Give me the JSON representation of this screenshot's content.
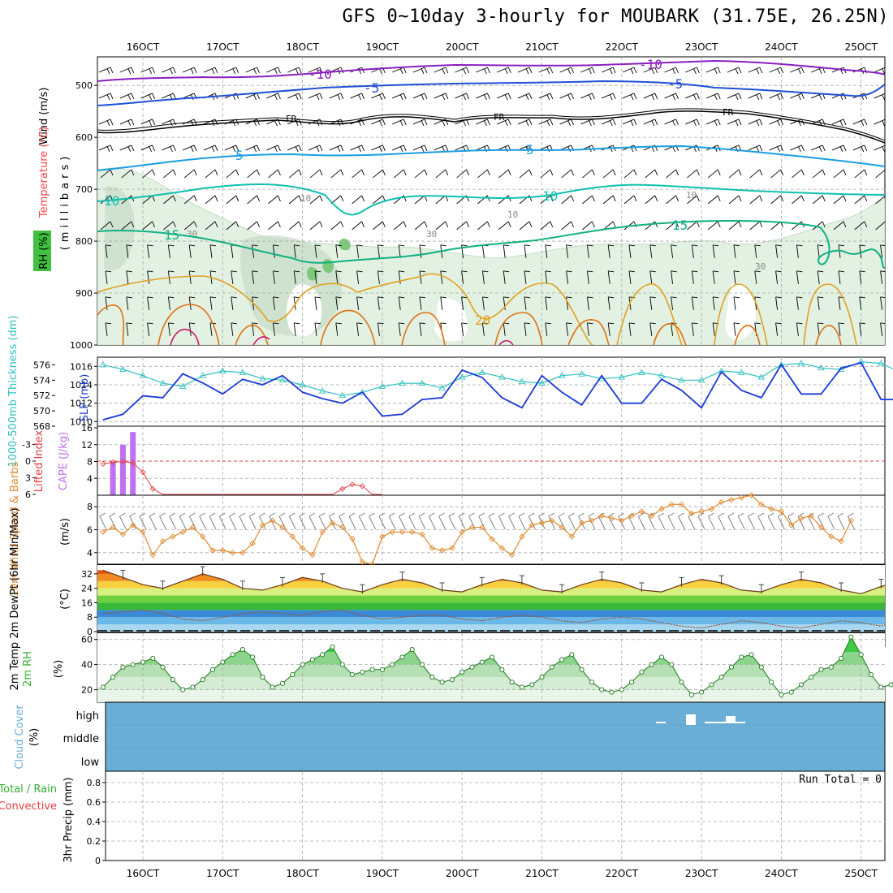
{
  "title": "GFS 0~10day 3-hourly for MOUBARK (31.75E, 26.25N)",
  "date_labels": [
    "16OCT",
    "17OCT",
    "18OCT",
    "19OCT",
    "20OCT",
    "21OCT",
    "22OCT",
    "23OCT",
    "24OCT",
    "25OCT"
  ],
  "colors": {
    "temp_minus10": "#8a1fc0",
    "temp_minus5": "#2050d8",
    "freezing": "#000000",
    "temp_5": "#1a9ee0",
    "temp_10": "#10c0b0",
    "temp_15": "#10b080",
    "temp_20": "#e0a020",
    "temp_25": "#e07010",
    "rh_fill": "#dcefdc",
    "cape_bar": "#c070f0",
    "lifted": "#e04040",
    "slp": "#1a3ad8",
    "thickness": "#30c0c0",
    "wind": "#e08a30",
    "rh2m": "#30b030",
    "cloud": "#6aaed6",
    "precip": "#000000"
  },
  "panels": {
    "upper_air": {
      "label_wind": "Wind (m/s)",
      "label_temperature": "Temperature (°C)",
      "label_rh": "RH (%)",
      "label_units": "(millibars)",
      "pressure_ticks": [
        "500",
        "600",
        "700",
        "800",
        "900",
        "1000"
      ],
      "contour_labels": {
        "m10": "-10",
        "m5": "-5",
        "fr": "FR",
        "p5": "5",
        "p10": "10",
        "p15": "15",
        "p20": "20",
        "rh10": "10",
        "rh30": "30"
      }
    },
    "slp_thickness": {
      "label_thickness": "1000-500mb Thickness (dm)",
      "label_slp": "SLP (mb)",
      "thickness_ticks": [
        "576",
        "574",
        "572",
        "570",
        "568"
      ],
      "slp_ticks": [
        "1016",
        "1014",
        "1012",
        "1010"
      ]
    },
    "cape_li": {
      "label_li": "Lifted Index",
      "label_cape": "CAPE (J/kg)",
      "li_ticks": [
        "-3",
        "0",
        "3",
        "6"
      ],
      "cape_ticks": [
        "16",
        "12",
        "8",
        "4"
      ]
    },
    "wind10m": {
      "label": "10m Wind Speed & Barbs",
      "units": "(m/s)",
      "ticks": [
        "8",
        "6",
        "4"
      ]
    },
    "temp2m": {
      "label": "2m Temp 2m DewPt (6hr Min/Max)",
      "units": "(°C)",
      "ticks": [
        "32",
        "24",
        "16",
        "8",
        "0"
      ]
    },
    "rh2m": {
      "label": "2m RH",
      "units": "(%)",
      "ticks": [
        "60",
        "40",
        "20"
      ]
    },
    "cloud": {
      "label": "Cloud Cover",
      "units": "(%)",
      "levels": [
        "high",
        "middle",
        "low"
      ]
    },
    "precip": {
      "label_total": "Total / Rain",
      "label_conv": "Convective",
      "label_axis": "3hr Precip (mm)",
      "ticks": [
        "0.8",
        "0.6",
        "0.4",
        "0.2",
        "0"
      ],
      "run_total": "Run Total = 0"
    }
  },
  "chart_data": [
    {
      "type": "line",
      "name": "SLP",
      "ylabel": "SLP (mb)",
      "ylim": [
        1009.5,
        1017
      ],
      "x_start": "15OCT 12Z",
      "x_step_hours": 6,
      "values": [
        1010.2,
        1010.8,
        1012.8,
        1012.6,
        1015.2,
        1014.2,
        1013.0,
        1014.6,
        1014.0,
        1015.0,
        1013.2,
        1012.5,
        1012.0,
        1013.2,
        1010.6,
        1010.8,
        1012.4,
        1012.6,
        1015.6,
        1014.8,
        1012.6,
        1011.5,
        1015.0,
        1013.2,
        1011.8,
        1015.0,
        1012.0,
        1012.0,
        1014.6,
        1013.4,
        1011.5,
        1015.4,
        1013.4,
        1012.6,
        1016.2,
        1013.0,
        1013.0,
        1015.8,
        1016.4,
        1012.4,
        1012.4,
        1015.2,
        1015.0,
        1012.2,
        1011.0,
        1011.8,
        1012.8,
        1014.2
      ]
    },
    {
      "type": "line",
      "name": "1000-500mb Thickness",
      "ylabel": "Thickness (dm)",
      "ylim": [
        568,
        577
      ],
      "x_start": "15OCT 12Z",
      "x_step_hours": 6,
      "values": [
        576.0,
        575.4,
        574.6,
        573.6,
        573.2,
        574.6,
        575.2,
        575.0,
        574.2,
        574.0,
        573.4,
        572.6,
        572.0,
        572.4,
        573.2,
        573.6,
        573.6,
        573.0,
        574.4,
        575.0,
        574.4,
        573.8,
        573.6,
        574.6,
        574.8,
        574.2,
        574.4,
        575.0,
        574.6,
        574.0,
        574.0,
        575.2,
        575.0,
        574.4,
        576.0,
        576.2,
        575.6,
        575.4,
        576.4,
        576.2,
        575.0,
        573.6,
        572.6,
        572.4,
        571.8,
        570.6,
        569.8,
        568.6
      ]
    },
    {
      "type": "line",
      "name": "10m Wind Speed",
      "ylabel": "(m/s)",
      "ylim": [
        3,
        9
      ],
      "x_start": "15OCT 12Z",
      "x_step_hours": 3,
      "values": [
        5.8,
        6.2,
        5.6,
        6.4,
        5.8,
        3.8,
        5.0,
        5.4,
        5.8,
        6.2,
        5.4,
        4.2,
        4.2,
        4.0,
        4.0,
        4.8,
        6.4,
        6.8,
        6.2,
        5.4,
        4.4,
        3.8,
        5.8,
        6.6,
        6.2,
        5.2,
        3.2,
        3.0,
        5.4,
        5.8,
        5.8,
        5.8,
        5.6,
        4.4,
        4.2,
        4.4,
        5.8,
        6.2,
        6.2,
        5.2,
        4.4,
        3.8,
        5.4,
        6.4,
        6.6,
        6.8,
        6.2,
        5.4,
        6.6,
        6.8,
        7.2,
        7.0,
        6.8,
        7.2,
        7.6,
        7.2,
        7.8,
        8.2,
        8.2,
        7.4,
        7.6,
        7.8,
        8.4,
        8.6,
        8.8,
        9.0,
        8.2,
        7.8,
        7.6,
        6.4,
        7.0,
        7.2,
        6.2,
        5.4,
        5.0,
        6.8
      ]
    },
    {
      "type": "area",
      "name": "2m Temp",
      "ylabel": "(°C)",
      "ylim": [
        0,
        36
      ],
      "x_start": "15OCT 12Z",
      "x_step_hours": 6,
      "values": [
        34,
        30,
        26,
        24,
        28,
        32,
        29,
        24,
        23,
        26,
        30,
        28,
        24,
        22,
        26,
        29,
        27,
        23,
        22,
        26,
        29,
        27,
        23,
        22,
        26,
        29,
        27,
        23,
        22,
        26,
        29,
        27,
        23,
        22,
        26,
        29,
        27,
        23,
        21,
        25,
        28,
        26,
        22,
        21,
        25,
        28,
        25,
        19
      ]
    },
    {
      "type": "line",
      "name": "2m DewPt",
      "ylabel": "(°C)",
      "ylim": [
        0,
        36
      ],
      "x_start": "15OCT 12Z",
      "x_step_hours": 6,
      "values": [
        10,
        11,
        12,
        10,
        7,
        6,
        8,
        10,
        11,
        10,
        9,
        11,
        12,
        9,
        7,
        8,
        9,
        9,
        7,
        6,
        8,
        9,
        8,
        6,
        5,
        7,
        8,
        7,
        5,
        3,
        2,
        4,
        6,
        5,
        3,
        2,
        4,
        6,
        5,
        3,
        7,
        11,
        10,
        6,
        4,
        5,
        9,
        10
      ]
    },
    {
      "type": "area",
      "name": "2m RH",
      "ylabel": "(%)",
      "ylim": [
        10,
        65
      ],
      "x_start": "15OCT 12Z",
      "x_step_hours": 3,
      "values": [
        22,
        30,
        38,
        40,
        42,
        45,
        38,
        28,
        20,
        22,
        28,
        36,
        42,
        48,
        52,
        46,
        30,
        22,
        25,
        32,
        40,
        44,
        48,
        54,
        40,
        32,
        34,
        36,
        36,
        40,
        46,
        52,
        40,
        30,
        26,
        28,
        34,
        38,
        42,
        46,
        36,
        26,
        22,
        24,
        30,
        38,
        44,
        48,
        36,
        26,
        20,
        18,
        20,
        26,
        34,
        40,
        46,
        40,
        26,
        16,
        18,
        24,
        30,
        38,
        46,
        48,
        38,
        26,
        16,
        18,
        24,
        30,
        36,
        38,
        45,
        62,
        48,
        32,
        22,
        24,
        32,
        38,
        44,
        52,
        54
      ]
    },
    {
      "type": "bar",
      "name": "CAPE",
      "ylabel": "CAPE (J/kg)",
      "ylim": [
        0,
        16
      ],
      "x": [
        "15OCT 15Z",
        "15OCT 18Z",
        "15OCT 21Z"
      ],
      "values": [
        8,
        12,
        15
      ]
    },
    {
      "type": "line",
      "name": "Lifted Index",
      "ylabel": "Lifted Index",
      "ylim": [
        6,
        -6
      ],
      "x_start": "15OCT 12Z",
      "x_step_hours": 3,
      "values": [
        0.5,
        0.2,
        0.1,
        0.3,
        2,
        5,
        6,
        6,
        6,
        6,
        6,
        6,
        6,
        6,
        6,
        6,
        6,
        6,
        6,
        6,
        6,
        6,
        6,
        6,
        5,
        4.2,
        4.5,
        6,
        6
      ]
    },
    {
      "type": "bar",
      "name": "3hr Precip",
      "ylabel": "3hr Precip (mm)",
      "ylim": [
        0,
        0.9
      ],
      "values": [
        0
      ]
    }
  ]
}
